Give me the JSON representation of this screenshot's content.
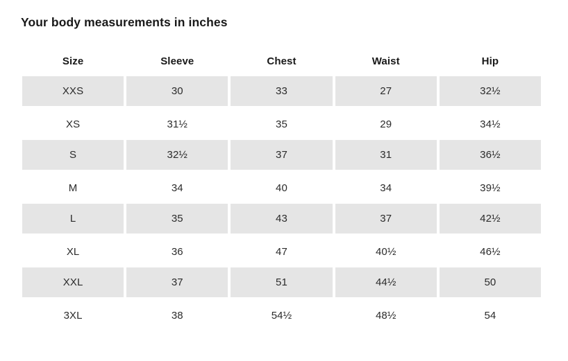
{
  "title": "Your body measurements in inches",
  "table": {
    "columns": [
      "Size",
      "Sleeve",
      "Chest",
      "Waist",
      "Hip"
    ],
    "rows": [
      [
        "XXS",
        "30",
        "33",
        "27",
        "32½"
      ],
      [
        "XS",
        "31½",
        "35",
        "29",
        "34½"
      ],
      [
        "S",
        "32½",
        "37",
        "31",
        "36½"
      ],
      [
        "M",
        "34",
        "40",
        "34",
        "39½"
      ],
      [
        "L",
        "35",
        "43",
        "37",
        "42½"
      ],
      [
        "XL",
        "36",
        "47",
        "40½",
        "46½"
      ],
      [
        "XXL",
        "37",
        "51",
        "44½",
        "50"
      ],
      [
        "3XL",
        "38",
        "54½",
        "48½",
        "54"
      ]
    ],
    "striped_row_indices": [
      0,
      2,
      4,
      6
    ]
  },
  "chart_data": {
    "type": "table",
    "title": "Your body measurements in inches",
    "columns": [
      "Size",
      "Sleeve",
      "Chest",
      "Waist",
      "Hip"
    ],
    "rows": [
      {
        "size": "XXS",
        "sleeve": 30,
        "chest": 33,
        "waist": 27,
        "hip": 32.5
      },
      {
        "size": "XS",
        "sleeve": 31.5,
        "chest": 35,
        "waist": 29,
        "hip": 34.5
      },
      {
        "size": "S",
        "sleeve": 32.5,
        "chest": 37,
        "waist": 31,
        "hip": 36.5
      },
      {
        "size": "M",
        "sleeve": 34,
        "chest": 40,
        "waist": 34,
        "hip": 39.5
      },
      {
        "size": "L",
        "sleeve": 35,
        "chest": 43,
        "waist": 37,
        "hip": 42.5
      },
      {
        "size": "XL",
        "sleeve": 36,
        "chest": 47,
        "waist": 40.5,
        "hip": 46.5
      },
      {
        "size": "XXL",
        "sleeve": 37,
        "chest": 51,
        "waist": 44.5,
        "hip": 50
      },
      {
        "size": "3XL",
        "sleeve": 38,
        "chest": 54.5,
        "waist": 48.5,
        "hip": 54
      }
    ],
    "units": "inches"
  },
  "colors": {
    "background": "#ffffff",
    "row_stripe": "#e5e5e5",
    "body_text": "#2b2b2b",
    "heading_text": "#191919"
  }
}
